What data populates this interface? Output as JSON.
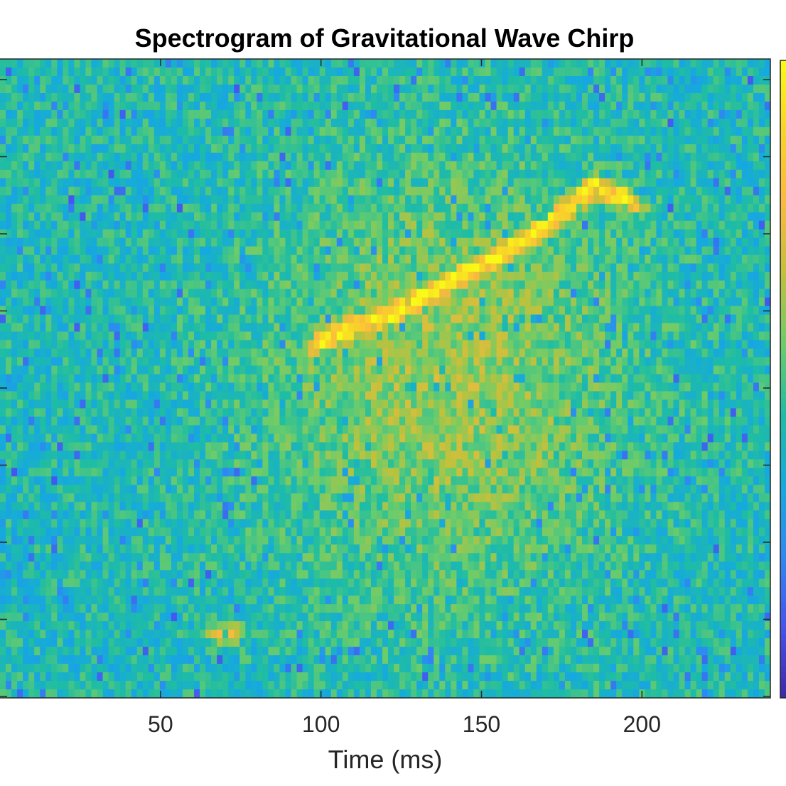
{
  "chart_data": {
    "type": "heatmap",
    "title": "Spectrogram of Gravitational Wave Chirp",
    "xlabel": "Time (ms)",
    "ylabel": "",
    "xlim": [
      0,
      240
    ],
    "x_ticks": [
      50,
      100,
      150,
      200
    ],
    "x_tick_labels": [
      "50",
      "100",
      "150",
      "200"
    ],
    "grid": false,
    "colormap": "parula",
    "colorbar": true,
    "colorbar_range": [
      0,
      1
    ],
    "colormap_stops": [
      "#3e26a8",
      "#4653ee",
      "#2f88f2",
      "#16a9de",
      "#1fbda3",
      "#6ccc6a",
      "#c2c13b",
      "#fbb93f",
      "#f8d428",
      "#f9fb15"
    ],
    "background_level": 0.42,
    "features": [
      {
        "name": "chirp",
        "shape": "ridge",
        "points": [
          [
            96,
            0.55
          ],
          [
            110,
            0.58
          ],
          [
            122,
            0.6
          ],
          [
            140,
            0.65
          ],
          [
            158,
            0.7
          ],
          [
            168,
            0.73
          ],
          [
            185,
            0.8
          ],
          [
            200,
            0.77
          ]
        ],
        "peak_level": 0.97
      },
      {
        "name": "diffuse-halo",
        "shape": "blob",
        "x": 140,
        "y": 0.5,
        "peak_level": 0.2
      },
      {
        "name": "low-blob",
        "shape": "blob",
        "x": 70,
        "y": 0.1,
        "peak_level": 0.72
      }
    ]
  }
}
